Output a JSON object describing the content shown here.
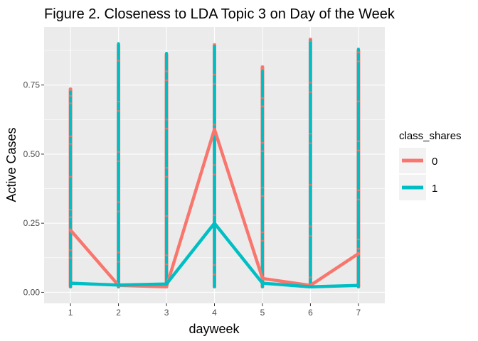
{
  "chart_data": {
    "type": "line",
    "title": "Figure 2. Closeness to LDA Topic 3 on Day of the Week",
    "xlabel": "dayweek",
    "ylabel": "Active Cases",
    "x": [
      1,
      2,
      3,
      4,
      5,
      6,
      7
    ],
    "x_ticks": [
      "1",
      "2",
      "3",
      "4",
      "5",
      "6",
      "7"
    ],
    "xlim": [
      0.45,
      7.55
    ],
    "ylim": [
      -0.04,
      0.96
    ],
    "y_ticks": [
      0.0,
      0.25,
      0.5,
      0.75
    ],
    "y_tick_labels": [
      "0.00",
      "0.25",
      "0.50",
      "0.75"
    ],
    "grid": true,
    "legend": {
      "title": "class_shares",
      "placement": "right"
    },
    "series": [
      {
        "name": "0",
        "color": "#F8766D",
        "values": [
          0.225,
          0.025,
          0.02,
          0.59,
          0.05,
          0.025,
          0.14
        ],
        "column_ranges": [
          [
            0.02,
            0.735
          ],
          [
            0.02,
            0.895
          ],
          [
            0.02,
            0.86
          ],
          [
            0.02,
            0.895
          ],
          [
            0.02,
            0.815
          ],
          [
            0.02,
            0.915
          ],
          [
            0.02,
            0.875
          ]
        ]
      },
      {
        "name": "1",
        "color": "#00BFC4",
        "values": [
          0.033,
          0.026,
          0.03,
          0.25,
          0.033,
          0.02,
          0.025
        ],
        "column_ranges": [
          [
            0.02,
            0.725
          ],
          [
            0.02,
            0.9
          ],
          [
            0.02,
            0.865
          ],
          [
            0.02,
            0.89
          ],
          [
            0.02,
            0.8
          ],
          [
            0.02,
            0.91
          ],
          [
            0.02,
            0.88
          ]
        ]
      }
    ]
  }
}
